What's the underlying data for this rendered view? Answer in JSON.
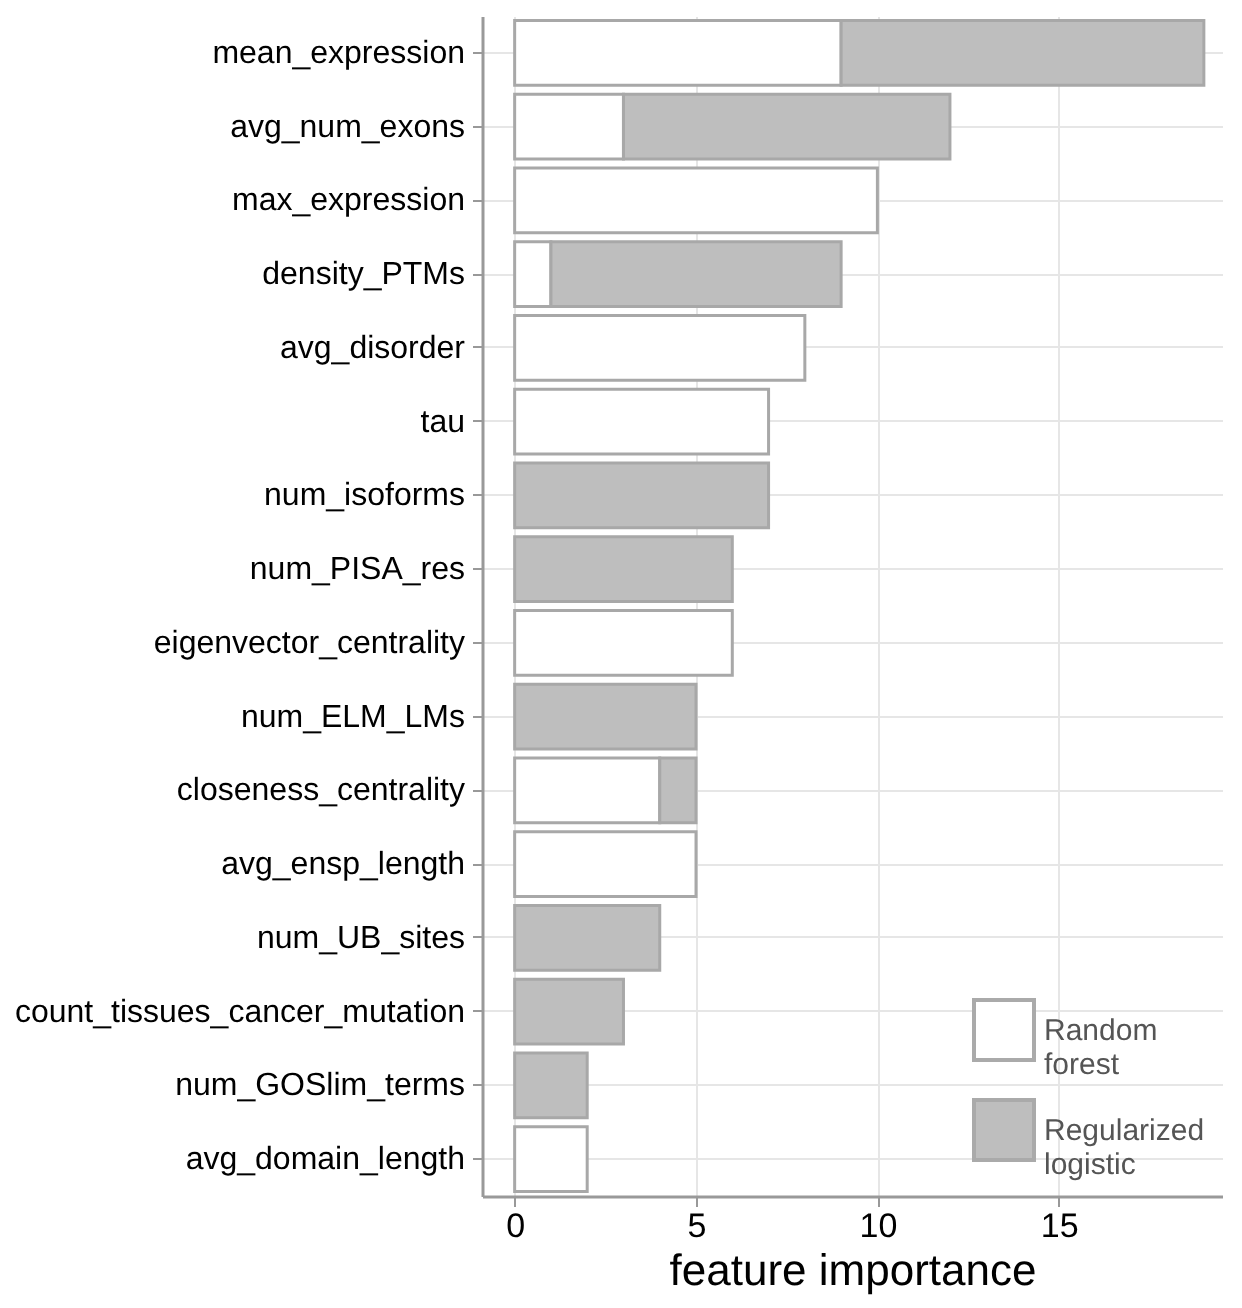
{
  "chart_data": {
    "type": "bar",
    "orientation": "horizontal",
    "stacked": true,
    "xlabel": "feature importance",
    "categories": [
      "mean_expression",
      "avg_num_exons",
      "max_expression",
      "density_PTMs",
      "avg_disorder",
      "tau",
      "num_isoforms",
      "num_PISA_res",
      "eigenvector_centrality",
      "num_ELM_LMs",
      "closeness_centrality",
      "avg_ensp_length",
      "num_UB_sites",
      "count_tissues_cancer_mutation",
      "num_GOSlim_terms",
      "avg_domain_length"
    ],
    "series": [
      {
        "name": "Random forest",
        "color": "#ffffff",
        "values": [
          9,
          3,
          10,
          1,
          8,
          7,
          null,
          null,
          6,
          null,
          4,
          5,
          null,
          null,
          null,
          2
        ]
      },
      {
        "name": "Regularized logistic",
        "color": "#bebebe",
        "values": [
          10,
          9,
          null,
          8,
          null,
          null,
          7,
          6,
          null,
          5,
          1,
          null,
          4,
          3,
          2,
          null
        ]
      }
    ],
    "xlim": [
      -0.9,
      19.5
    ],
    "xticks": [
      0,
      5,
      10,
      15
    ],
    "grid": true,
    "legend": "bottom right"
  }
}
